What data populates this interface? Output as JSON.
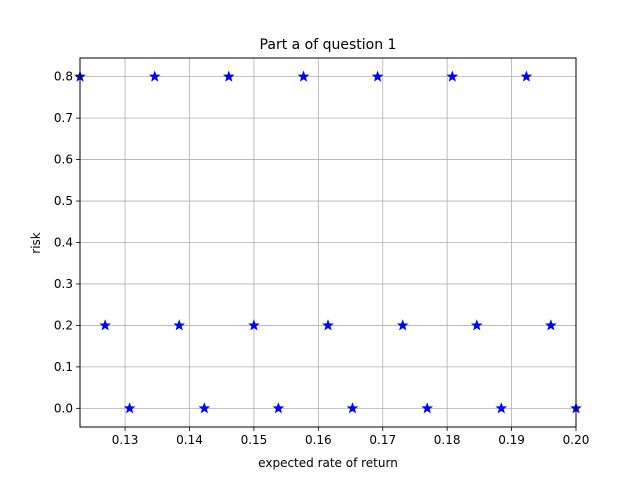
{
  "chart_data": {
    "type": "scatter",
    "title": "Part a of question 1",
    "xlabel": "expected rate of return",
    "ylabel": "risk",
    "xlim": [
      0.123,
      0.2
    ],
    "ylim": [
      -0.045,
      0.845
    ],
    "xticks": [
      "0.13",
      "0.14",
      "0.15",
      "0.16",
      "0.17",
      "0.18",
      "0.19",
      "0.20"
    ],
    "xtick_values": [
      0.13,
      0.14,
      0.15,
      0.16,
      0.17,
      0.18,
      0.19,
      0.2
    ],
    "yticks": [
      "0.0",
      "0.1",
      "0.2",
      "0.3",
      "0.4",
      "0.5",
      "0.6",
      "0.7",
      "0.8"
    ],
    "ytick_values": [
      0.0,
      0.1,
      0.2,
      0.3,
      0.4,
      0.5,
      0.6,
      0.7,
      0.8
    ],
    "grid": true,
    "marker": "star",
    "marker_color": "#0000ff",
    "series": [
      {
        "points": [
          {
            "x": 0.123,
            "y": 0.8
          },
          {
            "x": 0.1346,
            "y": 0.8
          },
          {
            "x": 0.1461,
            "y": 0.8
          },
          {
            "x": 0.1577,
            "y": 0.8
          },
          {
            "x": 0.1692,
            "y": 0.8
          },
          {
            "x": 0.1808,
            "y": 0.8
          },
          {
            "x": 0.1923,
            "y": 0.8
          },
          {
            "x": 0.1269,
            "y": 0.2
          },
          {
            "x": 0.1384,
            "y": 0.2
          },
          {
            "x": 0.15,
            "y": 0.2
          },
          {
            "x": 0.1615,
            "y": 0.2
          },
          {
            "x": 0.1731,
            "y": 0.2
          },
          {
            "x": 0.1846,
            "y": 0.2
          },
          {
            "x": 0.1961,
            "y": 0.2
          },
          {
            "x": 0.1307,
            "y": 0.0
          },
          {
            "x": 0.1423,
            "y": 0.0
          },
          {
            "x": 0.1538,
            "y": 0.0
          },
          {
            "x": 0.1653,
            "y": 0.0
          },
          {
            "x": 0.1769,
            "y": 0.0
          },
          {
            "x": 0.1884,
            "y": 0.0
          },
          {
            "x": 0.2,
            "y": 0.0
          }
        ]
      }
    ]
  }
}
